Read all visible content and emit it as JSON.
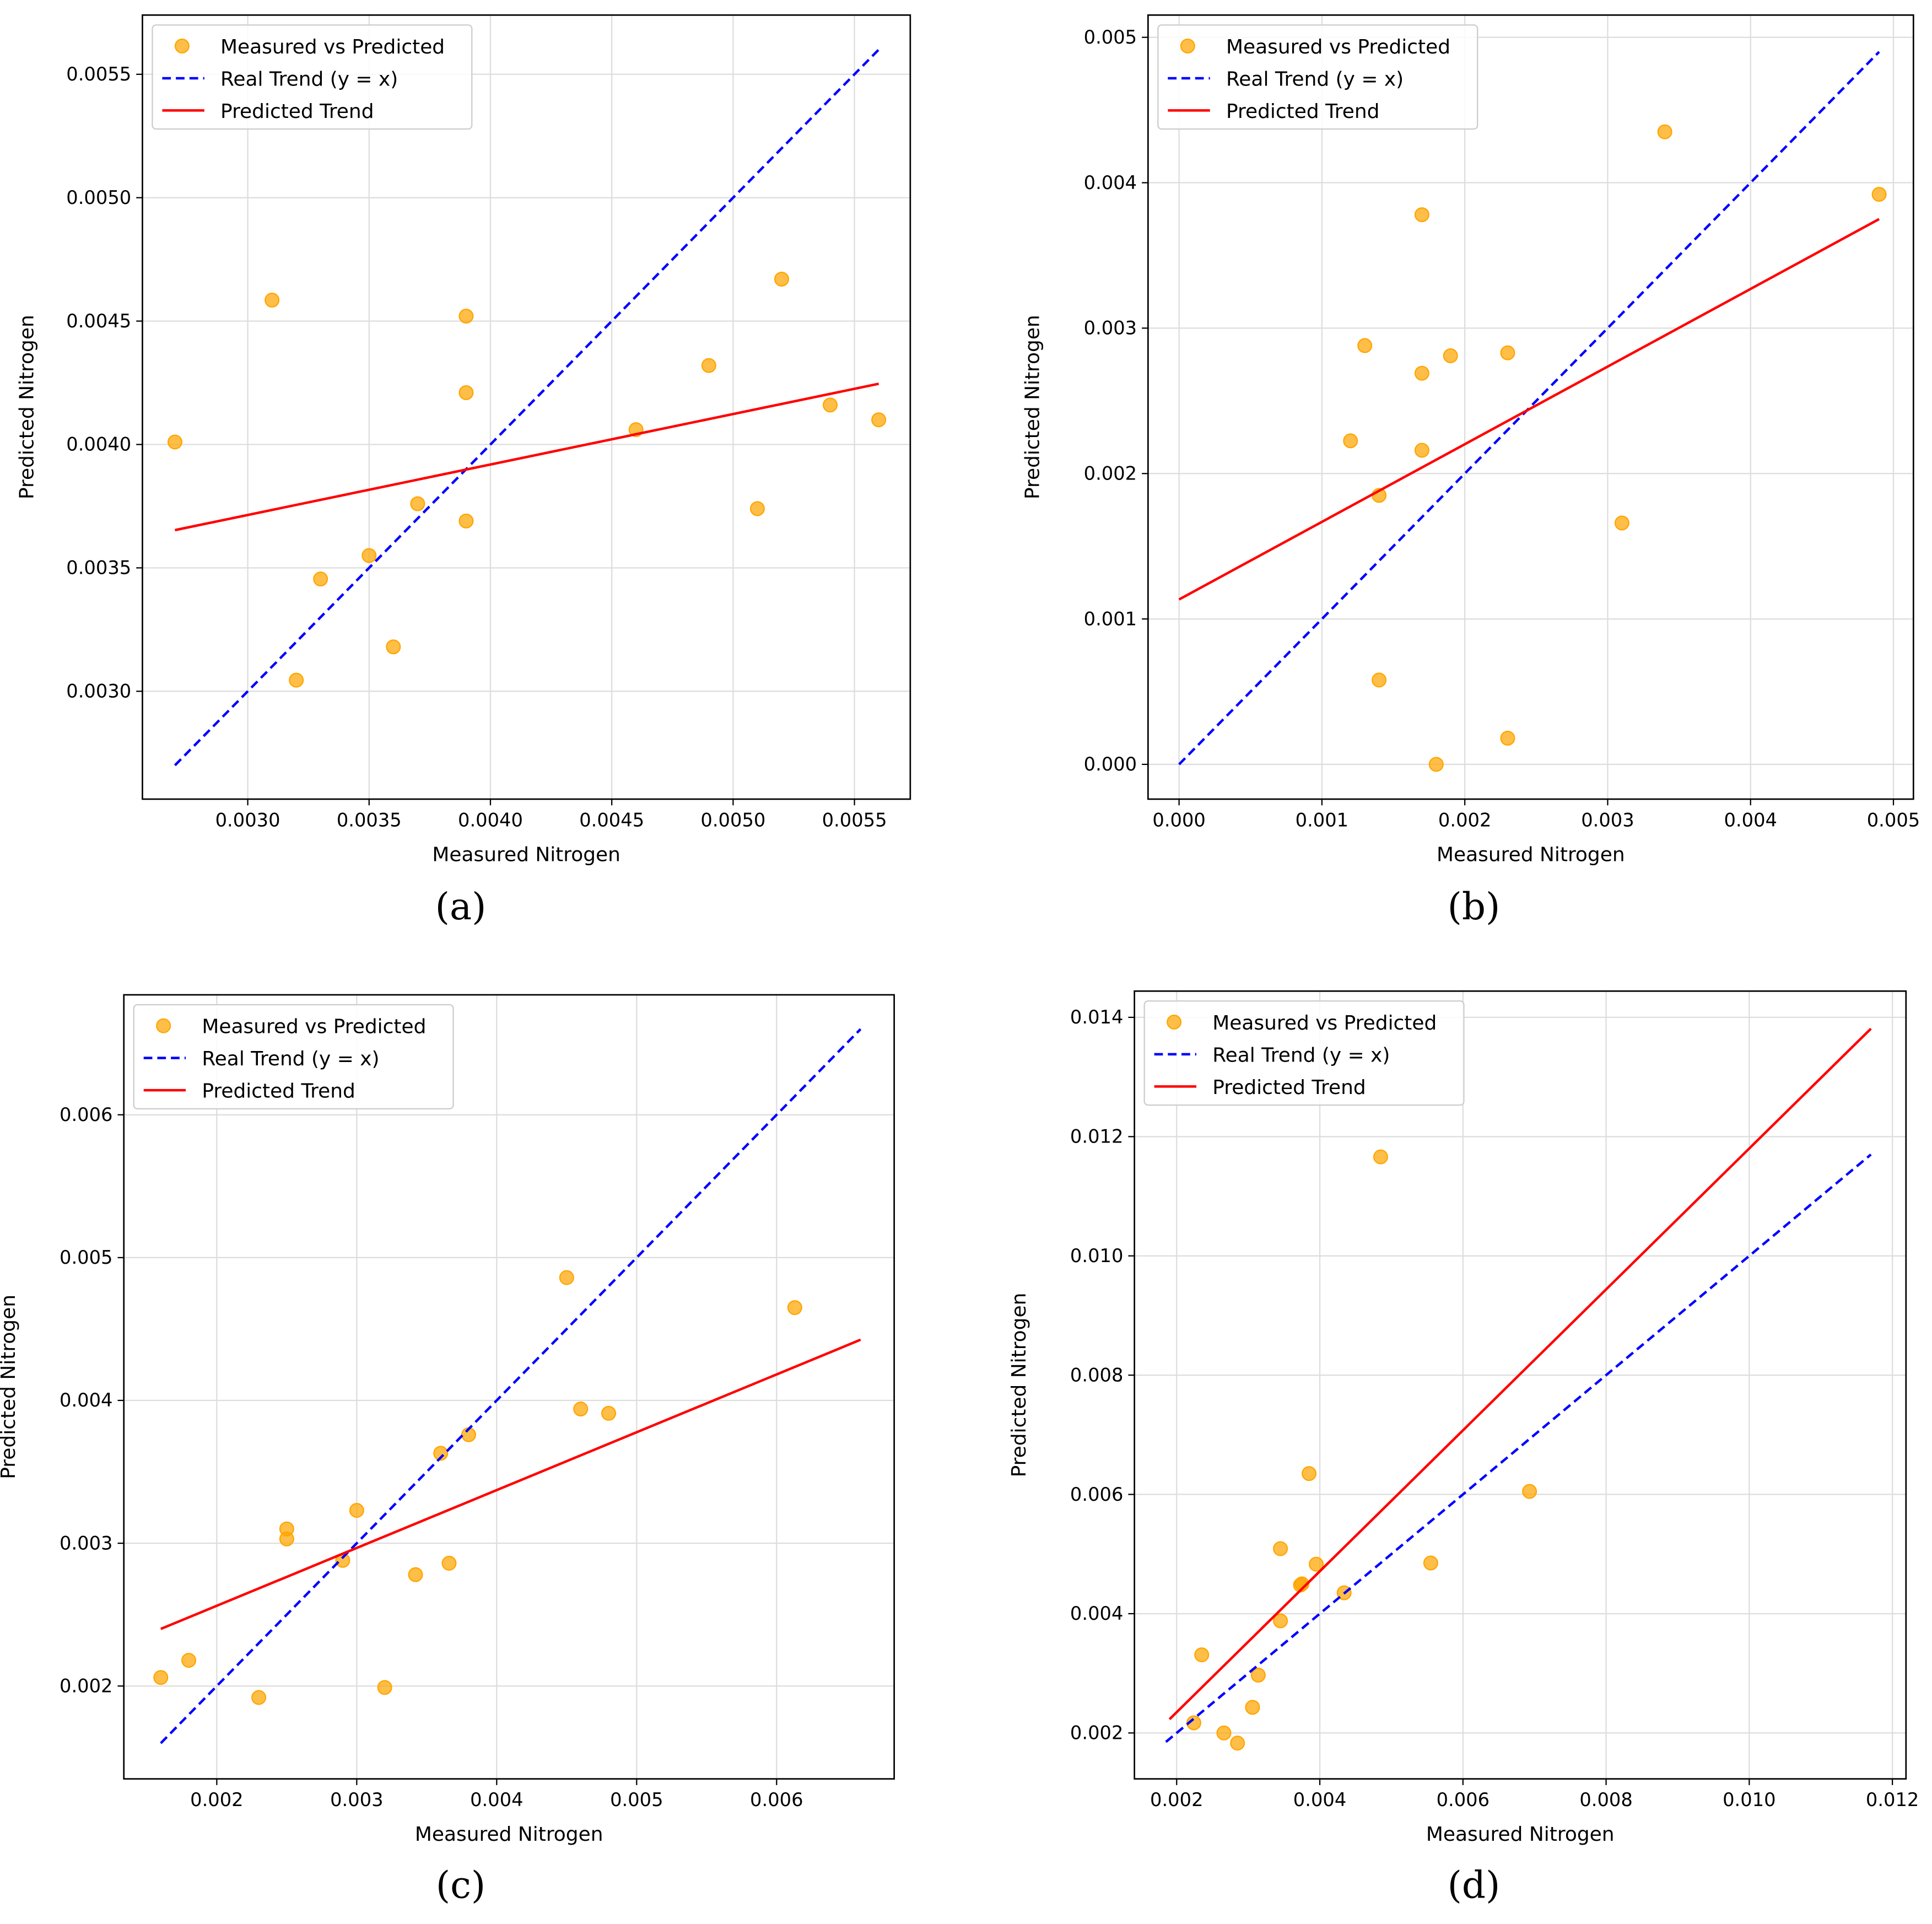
{
  "colors": {
    "points": "#ffa500",
    "real_trend": "#0000ff",
    "predicted_trend": "#ff0000",
    "grid": "#dddddd"
  },
  "chart_data": [
    {
      "caption": "(a)",
      "type": "scatter",
      "xlabel": "Measured Nitrogen",
      "ylabel": "Predicted Nitrogen",
      "xlim": [
        0.002566,
        0.00573
      ],
      "ylim": [
        0.002563,
        0.00574
      ],
      "grid": true,
      "legend_position": "top-left",
      "xticks": [
        {
          "v": 0.003,
          "label": "0.0030"
        },
        {
          "v": 0.0035,
          "label": "0.0035"
        },
        {
          "v": 0.004,
          "label": "0.0040"
        },
        {
          "v": 0.0045,
          "label": "0.0045"
        },
        {
          "v": 0.005,
          "label": "0.0050"
        },
        {
          "v": 0.0055,
          "label": "0.0055"
        }
      ],
      "yticks": [
        {
          "v": 0.003,
          "label": "0.0030"
        },
        {
          "v": 0.0035,
          "label": "0.0035"
        },
        {
          "v": 0.004,
          "label": "0.0040"
        },
        {
          "v": 0.0045,
          "label": "0.0045"
        },
        {
          "v": 0.005,
          "label": "0.0050"
        },
        {
          "v": 0.0055,
          "label": "0.0055"
        }
      ],
      "legend": [
        "Measured vs Predicted",
        "Real Trend (y = x)",
        "Predicted Trend"
      ],
      "points": [
        [
          0.0027,
          0.00401
        ],
        [
          0.0031,
          0.004585
        ],
        [
          0.0032,
          0.003045
        ],
        [
          0.0033,
          0.003455
        ],
        [
          0.0035,
          0.00355
        ],
        [
          0.0036,
          0.00318
        ],
        [
          0.0037,
          0.00376
        ],
        [
          0.0039,
          0.00452
        ],
        [
          0.0039,
          0.00421
        ],
        [
          0.0039,
          0.00369
        ],
        [
          0.0046,
          0.00406
        ],
        [
          0.0049,
          0.00432
        ],
        [
          0.0051,
          0.00374
        ],
        [
          0.0052,
          0.00467
        ],
        [
          0.0054,
          0.00416
        ],
        [
          0.0056,
          0.0041
        ]
      ],
      "real_trend": [
        [
          0.0027,
          0.0027
        ],
        [
          0.0056,
          0.0056
        ]
      ],
      "predicted_trend": [
        [
          0.0027,
          0.003653
        ],
        [
          0.0056,
          0.004246
        ]
      ]
    },
    {
      "caption": "(b)",
      "type": "scatter",
      "xlabel": "Measured Nitrogen",
      "ylabel": "Predicted Nitrogen",
      "xlim": [
        -0.000217,
        0.00514
      ],
      "ylim": [
        -0.000239,
        0.005153
      ],
      "grid": true,
      "legend_position": "top-left",
      "xticks": [
        {
          "v": 0,
          "label": "0.000"
        },
        {
          "v": 0.001,
          "label": "0.001"
        },
        {
          "v": 0.002,
          "label": "0.002"
        },
        {
          "v": 0.003,
          "label": "0.003"
        },
        {
          "v": 0.004,
          "label": "0.004"
        },
        {
          "v": 0.005,
          "label": "0.005"
        }
      ],
      "yticks": [
        {
          "v": 0,
          "label": "0.000"
        },
        {
          "v": 0.001,
          "label": "0.001"
        },
        {
          "v": 0.002,
          "label": "0.002"
        },
        {
          "v": 0.003,
          "label": "0.003"
        },
        {
          "v": 0.004,
          "label": "0.004"
        },
        {
          "v": 0.005,
          "label": "0.005"
        }
      ],
      "legend": [
        "Measured vs Predicted",
        "Real Trend (y = x)",
        "Predicted Trend"
      ],
      "points": [
        [
          0.0012,
          0.002225
        ],
        [
          0.0013,
          0.00288
        ],
        [
          0.0014,
          0.00185
        ],
        [
          0.0014,
          0.00058
        ],
        [
          0.0017,
          0.00378
        ],
        [
          0.0017,
          0.00269
        ],
        [
          0.0017,
          0.00216
        ],
        [
          0.0018,
          0.0
        ],
        [
          0.0019,
          0.00281
        ],
        [
          0.0023,
          0.00283
        ],
        [
          0.0023,
          0.00018
        ],
        [
          0.0031,
          0.00166
        ],
        [
          0.0034,
          0.00435
        ],
        [
          0.0049,
          0.00392
        ]
      ],
      "real_trend": [
        [
          0.0,
          0.0
        ],
        [
          0.0049,
          0.0049
        ]
      ],
      "predicted_trend": [
        [
          0.0,
          0.001134
        ],
        [
          0.0049,
          0.00375
        ]
      ]
    },
    {
      "caption": "(c)",
      "type": "scatter",
      "xlabel": "Measured Nitrogen",
      "ylabel": "Predicted Nitrogen",
      "xlim": [
        0.001336,
        0.00684
      ],
      "ylim": [
        0.00135,
        0.00684
      ],
      "grid": true,
      "legend_position": "top-left",
      "xticks": [
        {
          "v": 0.002,
          "label": "0.002"
        },
        {
          "v": 0.003,
          "label": "0.003"
        },
        {
          "v": 0.004,
          "label": "0.004"
        },
        {
          "v": 0.005,
          "label": "0.005"
        },
        {
          "v": 0.006,
          "label": "0.006"
        }
      ],
      "yticks": [
        {
          "v": 0.002,
          "label": "0.002"
        },
        {
          "v": 0.003,
          "label": "0.003"
        },
        {
          "v": 0.004,
          "label": "0.004"
        },
        {
          "v": 0.005,
          "label": "0.005"
        },
        {
          "v": 0.006,
          "label": "0.006"
        }
      ],
      "legend": [
        "Measured vs Predicted",
        "Real Trend (y = x)",
        "Predicted Trend"
      ],
      "points": [
        [
          0.0016,
          0.00206
        ],
        [
          0.0018,
          0.00218
        ],
        [
          0.0023,
          0.00192
        ],
        [
          0.0025,
          0.0031
        ],
        [
          0.0025,
          0.00303
        ],
        [
          0.0029,
          0.00288
        ],
        [
          0.003,
          0.00323
        ],
        [
          0.0032,
          0.00199
        ],
        [
          0.00342,
          0.00278
        ],
        [
          0.0036,
          0.00363
        ],
        [
          0.00366,
          0.00286
        ],
        [
          0.0038,
          0.00376
        ],
        [
          0.0045,
          0.00486
        ],
        [
          0.0046,
          0.00394
        ],
        [
          0.0048,
          0.00391
        ],
        [
          0.00613,
          0.00465
        ]
      ],
      "real_trend": [
        [
          0.0016,
          0.0016
        ],
        [
          0.0066,
          0.0066
        ]
      ],
      "predicted_trend": [
        [
          0.0016,
          0.0024
        ],
        [
          0.0066,
          0.004425
        ]
      ]
    },
    {
      "caption": "(d)",
      "type": "scatter",
      "xlabel": "Measured Nitrogen",
      "ylabel": "Predicted Nitrogen",
      "xlim": [
        0.00141,
        0.01219
      ],
      "ylim": [
        0.00123,
        0.01444
      ],
      "grid": true,
      "legend_position": "top-left",
      "xticks": [
        {
          "v": 0.002,
          "label": "0.002"
        },
        {
          "v": 0.004,
          "label": "0.004"
        },
        {
          "v": 0.006,
          "label": "0.006"
        },
        {
          "v": 0.008,
          "label": "0.008"
        },
        {
          "v": 0.01,
          "label": "0.010"
        },
        {
          "v": 0.012,
          "label": "0.012"
        }
      ],
      "yticks": [
        {
          "v": 0.002,
          "label": "0.002"
        },
        {
          "v": 0.004,
          "label": "0.004"
        },
        {
          "v": 0.006,
          "label": "0.006"
        },
        {
          "v": 0.008,
          "label": "0.008"
        },
        {
          "v": 0.01,
          "label": "0.010"
        },
        {
          "v": 0.012,
          "label": "0.012"
        },
        {
          "v": 0.014,
          "label": "0.014"
        }
      ],
      "legend": [
        "Measured vs Predicted",
        "Real Trend (y = x)",
        "Predicted Trend"
      ],
      "points": [
        [
          0.00224,
          0.00217
        ],
        [
          0.00235,
          0.00331
        ],
        [
          0.00266,
          0.002
        ],
        [
          0.00285,
          0.00183
        ],
        [
          0.00306,
          0.00243
        ],
        [
          0.00314,
          0.00297
        ],
        [
          0.00345,
          0.00509
        ],
        [
          0.00345,
          0.00388
        ],
        [
          0.00373,
          0.00448
        ],
        [
          0.00375,
          0.0045
        ],
        [
          0.00385,
          0.00635
        ],
        [
          0.00395,
          0.00483
        ],
        [
          0.00434,
          0.00435
        ],
        [
          0.00485,
          0.01166
        ],
        [
          0.00555,
          0.00485
        ],
        [
          0.00693,
          0.00605
        ]
      ],
      "real_trend": [
        [
          0.00185,
          0.00185
        ],
        [
          0.0117,
          0.0117
        ]
      ],
      "predicted_trend": [
        [
          0.0019,
          0.00223
        ],
        [
          0.0117,
          0.01381
        ]
      ]
    }
  ]
}
